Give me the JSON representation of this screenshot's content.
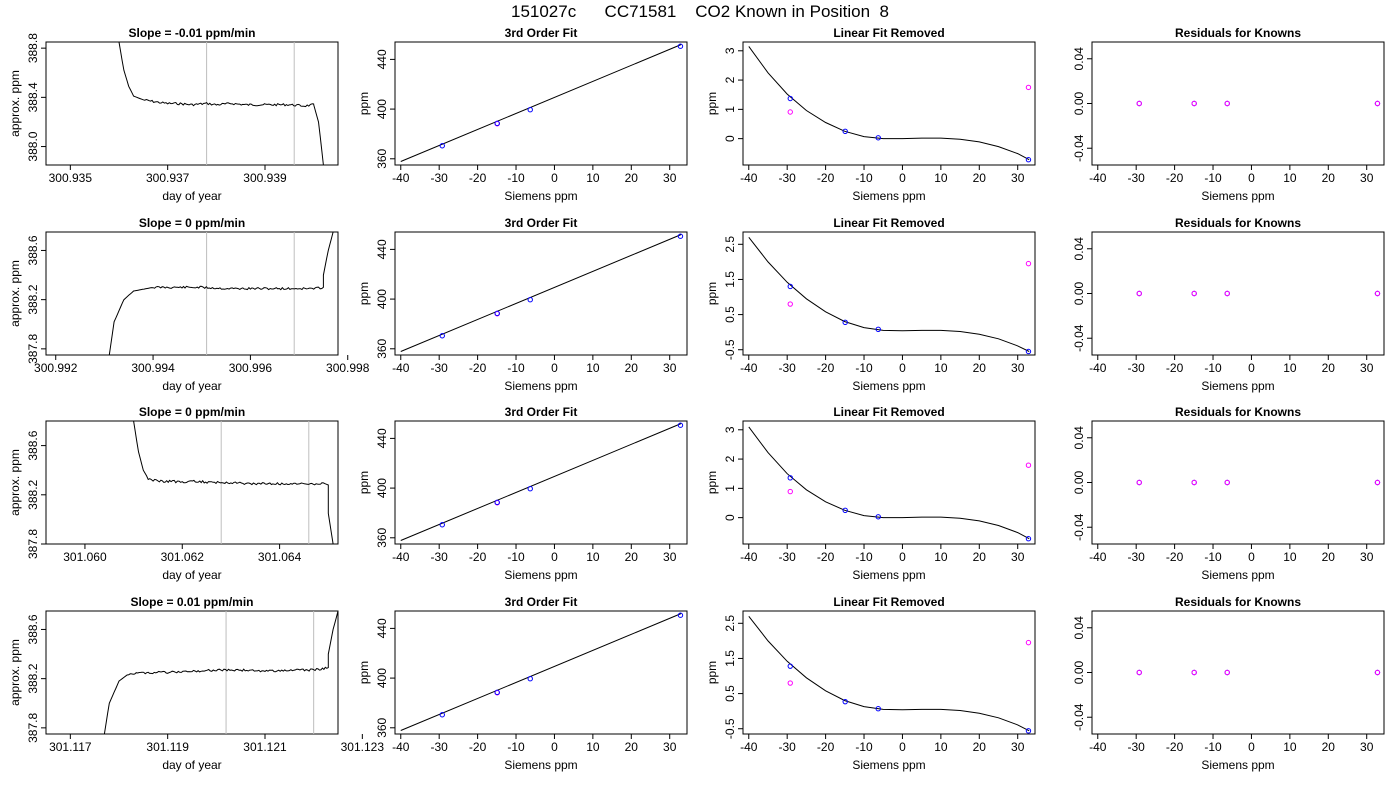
{
  "page": {
    "title": "151027c      CC71581    CO2 Known in Position  8"
  },
  "colors": {
    "trace": "#000000",
    "gridline": "#bebebe",
    "known_points": "#0000ff",
    "raw_points": "#ff00ff",
    "fit_line": "#000000"
  },
  "chart_data": [
    {
      "row": 1,
      "panel": "timeseries",
      "type": "line",
      "title": "Slope =  -0.01  ppm/min",
      "xlabel": "day of year",
      "ylabel": "approx. ppm",
      "xlim": [
        300.9345,
        300.9405
      ],
      "ylim": [
        387.85,
        388.85
      ],
      "xticks": [
        "300.935",
        "300.937",
        "300.939"
      ],
      "xtick_values": [
        300.935,
        300.937,
        300.939
      ],
      "yticks": [
        "388.0",
        "388.4",
        "388.8"
      ],
      "ytick_values": [
        388.0,
        388.4,
        388.8
      ],
      "vlines": [
        300.9378,
        300.9396
      ],
      "x": [
        300.936,
        300.9361,
        300.9362,
        300.9363,
        300.9365,
        300.9368,
        300.937,
        300.9372,
        300.9375,
        300.9378,
        300.938,
        300.9383,
        300.9386,
        300.9389,
        300.9392,
        300.9395,
        300.9398,
        300.94,
        300.94,
        300.9401,
        300.9402
      ],
      "y": [
        388.85,
        388.62,
        388.49,
        388.41,
        388.38,
        388.36,
        388.35,
        388.35,
        388.34,
        388.35,
        388.34,
        388.35,
        388.34,
        388.34,
        388.34,
        388.34,
        388.33,
        388.34,
        388.34,
        388.2,
        387.85
      ]
    },
    {
      "row": 1,
      "panel": "fit",
      "type": "scatter",
      "title": "3rd Order Fit",
      "xlabel": "Siemens ppm",
      "ylabel": "ppm",
      "xlim": [
        -41.5,
        34.5
      ],
      "ylim": [
        355,
        454
      ],
      "xticks": [
        "-40",
        "-30",
        "-20",
        "-10",
        "0",
        "10",
        "20",
        "30"
      ],
      "xtick_values": [
        -40,
        -30,
        -20,
        -10,
        0,
        10,
        20,
        30
      ],
      "yticks": [
        "360",
        "400",
        "440"
      ],
      "ytick_values": [
        360,
        400,
        440
      ],
      "known_x": [
        -29.2,
        -14.9,
        -6.3,
        32.8
      ],
      "known_y": [
        370.5,
        388.5,
        399.5,
        450.6
      ],
      "raw_x": [
        -14.9
      ],
      "raw_y": [
        388.2
      ],
      "fit_x": [
        -40,
        33
      ],
      "fit_y": [
        357.8,
        452.0
      ]
    },
    {
      "row": 1,
      "panel": "linear_removed",
      "type": "scatter",
      "title": "Linear Fit Removed",
      "xlabel": "Siemens ppm",
      "ylabel": "ppm",
      "xlim": [
        -41.5,
        34.5
      ],
      "ylim": [
        -0.9,
        3.3
      ],
      "xticks": [
        "-40",
        "-30",
        "-20",
        "-10",
        "0",
        "10",
        "20",
        "30"
      ],
      "xtick_values": [
        -40,
        -30,
        -20,
        -10,
        0,
        10,
        20,
        30
      ],
      "yticks": [
        "0",
        "1",
        "2",
        "3"
      ],
      "ytick_values": [
        0,
        1,
        2,
        3
      ],
      "known_x": [
        -29.2,
        -14.9,
        -6.3,
        32.8
      ],
      "known_y": [
        1.37,
        0.25,
        0.03,
        -0.72
      ],
      "raw_x": [
        -29.2,
        32.8
      ],
      "raw_y": [
        0.91,
        1.75
      ],
      "curve_x": [
        -40,
        -35,
        -30,
        -25,
        -20,
        -15,
        -10,
        -5,
        0,
        5,
        10,
        15,
        20,
        25,
        30,
        33
      ],
      "curve_y": [
        3.15,
        2.25,
        1.52,
        0.96,
        0.55,
        0.25,
        0.07,
        0.0,
        0.0,
        0.02,
        0.02,
        -0.02,
        -0.11,
        -0.27,
        -0.51,
        -0.72
      ]
    },
    {
      "row": 1,
      "panel": "residuals",
      "type": "scatter",
      "title": "Residuals for Knowns",
      "xlabel": "Siemens ppm",
      "ylabel": "",
      "xlim": [
        -41.5,
        34.5
      ],
      "ylim": [
        -0.055,
        0.055
      ],
      "xticks": [
        "-40",
        "-30",
        "-20",
        "-10",
        "0",
        "10",
        "20",
        "30"
      ],
      "xtick_values": [
        -40,
        -30,
        -20,
        -10,
        0,
        10,
        20,
        30
      ],
      "yticks": [
        "-0.04",
        "0.00",
        "0.04"
      ],
      "ytick_values": [
        -0.04,
        0.0,
        0.04
      ],
      "known_x": [
        -29.2,
        -14.9,
        -6.3,
        32.8
      ],
      "known_y": [
        0,
        0,
        0,
        0
      ]
    },
    {
      "row": 2,
      "panel": "timeseries",
      "type": "line",
      "title": "Slope =  0  ppm/min",
      "xlabel": "day of year",
      "ylabel": "approx. ppm",
      "xlim": [
        300.9918,
        300.9978
      ],
      "ylim": [
        387.75,
        388.75
      ],
      "xticks": [
        "300.992",
        "300.994",
        "300.996",
        "300.998"
      ],
      "xtick_values": [
        300.992,
        300.994,
        300.996,
        300.998
      ],
      "yticks": [
        "387.8",
        "388.2",
        "388.6"
      ],
      "ytick_values": [
        387.8,
        388.2,
        388.6
      ],
      "vlines": [
        300.9951,
        300.9969
      ],
      "x": [
        300.9931,
        300.9932,
        300.9934,
        300.9936,
        300.994,
        300.9945,
        300.995,
        300.9955,
        300.996,
        300.9965,
        300.997,
        300.9973,
        300.9975,
        300.9975,
        300.9976,
        300.9977
      ],
      "y": [
        387.75,
        388.02,
        388.2,
        388.27,
        388.3,
        388.3,
        388.3,
        388.29,
        388.29,
        388.29,
        388.29,
        388.29,
        388.3,
        388.4,
        388.6,
        388.75
      ]
    },
    {
      "row": 2,
      "panel": "fit",
      "type": "scatter",
      "title": "3rd Order Fit",
      "xlabel": "Siemens ppm",
      "ylabel": "ppm",
      "xlim": [
        -41.5,
        34.5
      ],
      "ylim": [
        355,
        454
      ],
      "xticks": [
        "-40",
        "-30",
        "-20",
        "-10",
        "0",
        "10",
        "20",
        "30"
      ],
      "xtick_values": [
        -40,
        -30,
        -20,
        -10,
        0,
        10,
        20,
        30
      ],
      "yticks": [
        "360",
        "400",
        "440"
      ],
      "ytick_values": [
        360,
        400,
        440
      ],
      "known_x": [
        -29.2,
        -14.9,
        -6.3,
        32.8
      ],
      "known_y": [
        370.5,
        388.5,
        399.5,
        450.6
      ],
      "raw_x": [
        -14.9
      ],
      "raw_y": [
        388.2
      ],
      "fit_x": [
        -40,
        33
      ],
      "fit_y": [
        357.8,
        452.0
      ]
    },
    {
      "row": 2,
      "panel": "linear_removed",
      "type": "scatter",
      "title": "Linear Fit Removed",
      "xlabel": "Siemens ppm",
      "ylabel": "ppm",
      "xlim": [
        -41.5,
        34.5
      ],
      "ylim": [
        -0.65,
        2.85
      ],
      "xticks": [
        "-40",
        "-30",
        "-20",
        "-10",
        "0",
        "10",
        "20",
        "30"
      ],
      "xtick_values": [
        -40,
        -30,
        -20,
        -10,
        0,
        10,
        20,
        30
      ],
      "yticks": [
        "-0.5",
        "0.5",
        "1.5",
        "2.5"
      ],
      "ytick_values": [
        -0.5,
        0.5,
        1.5,
        2.5
      ],
      "known_x": [
        -29.2,
        -14.9,
        -6.3,
        32.8
      ],
      "known_y": [
        1.3,
        0.28,
        0.08,
        -0.55
      ],
      "raw_x": [
        -29.2,
        32.8
      ],
      "raw_y": [
        0.8,
        1.95
      ],
      "curve_x": [
        -40,
        -35,
        -30,
        -25,
        -20,
        -15,
        -10,
        -5,
        0,
        5,
        10,
        15,
        20,
        25,
        30,
        33
      ],
      "curve_y": [
        2.7,
        2.0,
        1.42,
        0.95,
        0.58,
        0.3,
        0.13,
        0.05,
        0.04,
        0.05,
        0.05,
        0.02,
        -0.06,
        -0.19,
        -0.39,
        -0.55
      ]
    },
    {
      "row": 2,
      "panel": "residuals",
      "type": "scatter",
      "title": "Residuals for Knowns",
      "xlabel": "Siemens ppm",
      "ylabel": "",
      "xlim": [
        -41.5,
        34.5
      ],
      "ylim": [
        -0.055,
        0.055
      ],
      "xticks": [
        "-40",
        "-30",
        "-20",
        "-10",
        "0",
        "10",
        "20",
        "30"
      ],
      "xtick_values": [
        -40,
        -30,
        -20,
        -10,
        0,
        10,
        20,
        30
      ],
      "yticks": [
        "-0.04",
        "0.00",
        "0.04"
      ],
      "ytick_values": [
        -0.04,
        0.0,
        0.04
      ],
      "known_x": [
        -29.2,
        -14.9,
        -6.3,
        32.8
      ],
      "known_y": [
        0,
        0,
        0,
        0
      ]
    },
    {
      "row": 3,
      "panel": "timeseries",
      "type": "line",
      "title": "Slope =  0  ppm/min",
      "xlabel": "day of year",
      "ylabel": "approx. ppm",
      "xlim": [
        301.0592,
        301.0652
      ],
      "ylim": [
        387.8,
        388.8
      ],
      "xticks": [
        "301.060",
        "301.062",
        "301.064"
      ],
      "xtick_values": [
        301.06,
        301.062,
        301.064
      ],
      "yticks": [
        "387.8",
        "388.2",
        "388.6"
      ],
      "ytick_values": [
        387.8,
        388.2,
        388.6
      ],
      "vlines": [
        301.0628,
        301.0646
      ],
      "x": [
        301.061,
        301.0611,
        301.0612,
        301.0613,
        301.0615,
        301.0618,
        301.062,
        301.0623,
        301.0626,
        301.063,
        301.0634,
        301.0638,
        301.0642,
        301.0646,
        301.0649,
        301.065,
        301.065,
        301.0651
      ],
      "y": [
        388.8,
        388.55,
        388.4,
        388.33,
        388.31,
        388.31,
        388.3,
        388.31,
        388.3,
        388.3,
        388.29,
        388.29,
        388.29,
        388.29,
        388.29,
        388.28,
        388.05,
        387.8
      ]
    },
    {
      "row": 3,
      "panel": "fit",
      "type": "scatter",
      "title": "3rd Order Fit",
      "xlabel": "Siemens ppm",
      "ylabel": "ppm",
      "xlim": [
        -41.5,
        34.5
      ],
      "ylim": [
        355,
        454
      ],
      "xticks": [
        "-40",
        "-30",
        "-20",
        "-10",
        "0",
        "10",
        "20",
        "30"
      ],
      "xtick_values": [
        -40,
        -30,
        -20,
        -10,
        0,
        10,
        20,
        30
      ],
      "yticks": [
        "360",
        "400",
        "440"
      ],
      "ytick_values": [
        360,
        400,
        440
      ],
      "known_x": [
        -29.2,
        -14.9,
        -6.3,
        32.8
      ],
      "known_y": [
        370.5,
        388.5,
        399.5,
        450.6
      ],
      "raw_x": [
        -14.9
      ],
      "raw_y": [
        388.2
      ],
      "fit_x": [
        -40,
        33
      ],
      "fit_y": [
        357.8,
        452.0
      ]
    },
    {
      "row": 3,
      "panel": "linear_removed",
      "type": "scatter",
      "title": "Linear Fit Removed",
      "xlabel": "Siemens ppm",
      "ylabel": "ppm",
      "xlim": [
        -41.5,
        34.5
      ],
      "ylim": [
        -0.9,
        3.3
      ],
      "xticks": [
        "-40",
        "-30",
        "-20",
        "-10",
        "0",
        "10",
        "20",
        "30"
      ],
      "xtick_values": [
        -40,
        -30,
        -20,
        -10,
        0,
        10,
        20,
        30
      ],
      "yticks": [
        "0",
        "1",
        "2",
        "3"
      ],
      "ytick_values": [
        0,
        1,
        2,
        3
      ],
      "known_x": [
        -29.2,
        -14.9,
        -6.3,
        32.8
      ],
      "known_y": [
        1.36,
        0.25,
        0.03,
        -0.72
      ],
      "raw_x": [
        -29.2,
        32.8
      ],
      "raw_y": [
        0.89,
        1.79
      ],
      "curve_x": [
        -40,
        -35,
        -30,
        -25,
        -20,
        -15,
        -10,
        -5,
        0,
        5,
        10,
        15,
        20,
        25,
        30,
        33
      ],
      "curve_y": [
        3.1,
        2.22,
        1.5,
        0.95,
        0.54,
        0.25,
        0.07,
        0.0,
        0.0,
        0.02,
        0.02,
        -0.02,
        -0.11,
        -0.27,
        -0.51,
        -0.72
      ]
    },
    {
      "row": 3,
      "panel": "residuals",
      "type": "scatter",
      "title": "Residuals for Knowns",
      "xlabel": "Siemens ppm",
      "ylabel": "",
      "xlim": [
        -41.5,
        34.5
      ],
      "ylim": [
        -0.055,
        0.055
      ],
      "xticks": [
        "-40",
        "-30",
        "-20",
        "-10",
        "0",
        "10",
        "20",
        "30"
      ],
      "xtick_values": [
        -40,
        -30,
        -20,
        -10,
        0,
        10,
        20,
        30
      ],
      "yticks": [
        "-0.04",
        "0.00",
        "0.04"
      ],
      "ytick_values": [
        -0.04,
        0.0,
        0.04
      ],
      "known_x": [
        -29.2,
        -14.9,
        -6.3,
        32.8
      ],
      "known_y": [
        0,
        0,
        0,
        0
      ]
    },
    {
      "row": 4,
      "panel": "timeseries",
      "type": "line",
      "title": "Slope =  0.01  ppm/min",
      "xlabel": "day of year",
      "ylabel": "approx. ppm",
      "xlim": [
        301.1165,
        301.1225
      ],
      "ylim": [
        387.75,
        388.75
      ],
      "xticks": [
        "301.117",
        "301.119",
        "301.121",
        "301.123"
      ],
      "xtick_values": [
        301.117,
        301.119,
        301.121,
        301.123
      ],
      "yticks": [
        "387.8",
        "388.2",
        "388.6"
      ],
      "ytick_values": [
        387.8,
        388.2,
        388.6
      ],
      "vlines": [
        301.1202,
        301.122
      ],
      "x": [
        301.1177,
        301.1178,
        301.118,
        301.1182,
        301.1186,
        301.119,
        301.1195,
        301.12,
        301.1205,
        301.121,
        301.1215,
        301.122,
        301.1223,
        301.1223,
        301.1224,
        301.1225
      ],
      "y": [
        387.75,
        388.0,
        388.18,
        388.24,
        388.25,
        388.25,
        388.26,
        388.27,
        388.27,
        388.26,
        388.27,
        388.27,
        388.29,
        388.4,
        388.6,
        388.75
      ]
    },
    {
      "row": 4,
      "panel": "fit",
      "type": "scatter",
      "title": "3rd Order Fit",
      "xlabel": "Siemens ppm",
      "ylabel": "ppm",
      "xlim": [
        -41.5,
        34.5
      ],
      "ylim": [
        355,
        454
      ],
      "xticks": [
        "-40",
        "-30",
        "-20",
        "-10",
        "0",
        "10",
        "20",
        "30"
      ],
      "xtick_values": [
        -40,
        -30,
        -20,
        -10,
        0,
        10,
        20,
        30
      ],
      "yticks": [
        "360",
        "400",
        "440"
      ],
      "ytick_values": [
        360,
        400,
        440
      ],
      "known_x": [
        -29.2,
        -14.9,
        -6.3,
        32.8
      ],
      "known_y": [
        370.5,
        388.5,
        399.5,
        450.6
      ],
      "raw_x": [
        -14.9
      ],
      "raw_y": [
        388.2
      ],
      "fit_x": [
        -40,
        33
      ],
      "fit_y": [
        357.8,
        452.0
      ]
    },
    {
      "row": 4,
      "panel": "linear_removed",
      "type": "scatter",
      "title": "Linear Fit Removed",
      "xlabel": "Siemens ppm",
      "ylabel": "ppm",
      "xlim": [
        -41.5,
        34.5
      ],
      "ylim": [
        -0.65,
        2.85
      ],
      "xticks": [
        "-40",
        "-30",
        "-20",
        "-10",
        "0",
        "10",
        "20",
        "30"
      ],
      "xtick_values": [
        -40,
        -30,
        -20,
        -10,
        0,
        10,
        20,
        30
      ],
      "yticks": [
        "-0.5",
        "0.5",
        "1.5",
        "2.5"
      ],
      "ytick_values": [
        -0.5,
        0.5,
        1.5,
        2.5
      ],
      "known_x": [
        -29.2,
        -14.9,
        -6.3,
        32.8
      ],
      "known_y": [
        1.28,
        0.27,
        0.07,
        -0.56
      ],
      "raw_x": [
        -29.2,
        32.8
      ],
      "raw_y": [
        0.8,
        1.95
      ],
      "curve_x": [
        -40,
        -35,
        -30,
        -25,
        -20,
        -15,
        -10,
        -5,
        0,
        5,
        10,
        15,
        20,
        25,
        30,
        33
      ],
      "curve_y": [
        2.7,
        2.0,
        1.42,
        0.95,
        0.58,
        0.3,
        0.13,
        0.05,
        0.04,
        0.05,
        0.05,
        0.02,
        -0.06,
        -0.19,
        -0.39,
        -0.56
      ]
    },
    {
      "row": 4,
      "panel": "residuals",
      "type": "scatter",
      "title": "Residuals for Knowns",
      "xlabel": "Siemens ppm",
      "ylabel": "",
      "xlim": [
        -41.5,
        34.5
      ],
      "ylim": [
        -0.055,
        0.055
      ],
      "xticks": [
        "-40",
        "-30",
        "-20",
        "-10",
        "0",
        "10",
        "20",
        "30"
      ],
      "xtick_values": [
        -40,
        -30,
        -20,
        -10,
        0,
        10,
        20,
        30
      ],
      "yticks": [
        "-0.04",
        "0.00",
        "0.04"
      ],
      "ytick_values": [
        -0.04,
        0.0,
        0.04
      ],
      "known_x": [
        -29.2,
        -14.9,
        -6.3,
        32.8
      ],
      "known_y": [
        0,
        0,
        0,
        0
      ]
    }
  ]
}
